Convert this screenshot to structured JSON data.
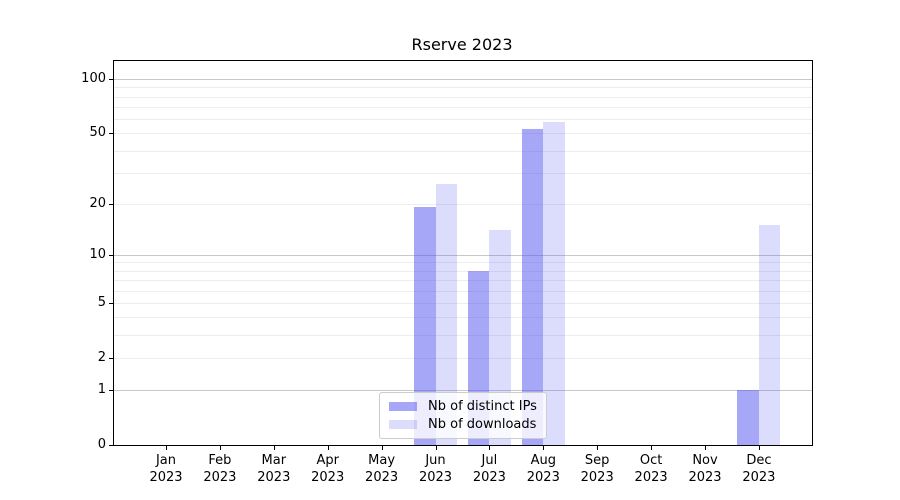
{
  "chart_data": {
    "type": "bar",
    "title": "Rserve 2023",
    "scale": "log1p",
    "grid": "both",
    "legend_position": "lower center",
    "categories": [
      "Jan 2023",
      "Feb 2023",
      "Mar 2023",
      "Apr 2023",
      "May 2023",
      "Jun 2023",
      "Jul 2023",
      "Aug 2023",
      "Sep 2023",
      "Oct 2023",
      "Nov 2023",
      "Dec 2023"
    ],
    "series": [
      {
        "name": "Nb of distinct IPs",
        "color": "#5050f0",
        "alpha": 0.5,
        "values": [
          0,
          0,
          0,
          0,
          0,
          19,
          8,
          53,
          0,
          0,
          0,
          1
        ]
      },
      {
        "name": "Nb of downloads",
        "color": "#5050f0",
        "alpha": 0.2,
        "values": [
          0,
          0,
          0,
          0,
          0,
          26,
          14,
          58,
          0,
          0,
          0,
          15
        ]
      }
    ],
    "y_ticks": [
      0,
      1,
      2,
      5,
      10,
      20,
      50,
      100
    ],
    "ylim": [
      0,
      126
    ]
  },
  "colors": {
    "axis": "#000000",
    "grid_major": "#c8c8c8",
    "grid_minor": "#ededed",
    "legend_border": "#cccccc",
    "text": "#000000"
  }
}
